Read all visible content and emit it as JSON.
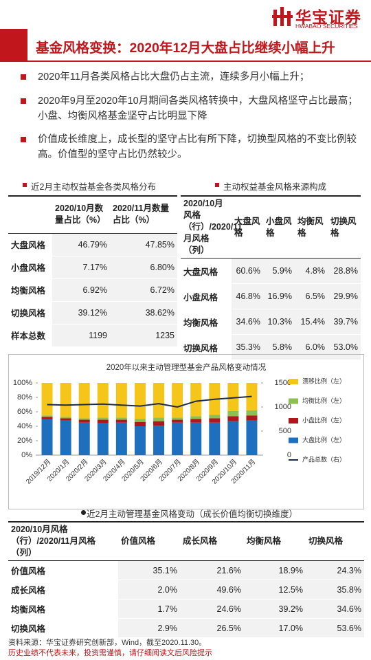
{
  "header": {
    "title": "基金风格变换：2020年12月大盘占比继续小幅上升",
    "logo_name": "华宝证券",
    "logo_sub": "HWABAO SECURITIES"
  },
  "bullets": [
    "2020年11月各类风格占比大盘仍占主流，连续多月小幅上升；",
    "2020年9月至2020年10月期间各类风格转换中，大盘风格坚守占比最高；小盘、均衡风格基金坚守占比明显下降",
    "价值成长维度上，成长型的坚守占比有所下降，切换型风格的不变比例较高。价值型的坚守占比仍然较少。"
  ],
  "table1": {
    "title": "近2月主动权益基金各类风格分布",
    "header": [
      "2020/10月数量占比（%）",
      "2020/11月数量占比（%）"
    ],
    "rows": [
      [
        "大盘风格",
        "46.79%",
        "47.85%"
      ],
      [
        "小盘风格",
        "7.17%",
        "6.80%"
      ],
      [
        "均衡风格",
        "6.92%",
        "6.72%"
      ],
      [
        "切换风格",
        "39.12%",
        "38.62%"
      ],
      [
        "样本总数",
        "1199",
        "1235"
      ]
    ]
  },
  "table2": {
    "title": "主动权益基金风格来源构成",
    "header": [
      "2020/10月风格（行）/2020/11月风格（列）",
      "大盘风格",
      "小盘风格",
      "均衡风格",
      "切换风格"
    ],
    "rows": [
      [
        "大盘风格",
        "60.6%",
        "5.9%",
        "4.8%",
        "28.8%"
      ],
      [
        "小盘风格",
        "46.8%",
        "16.9%",
        "6.5%",
        "29.9%"
      ],
      [
        "均衡风格",
        "34.6%",
        "10.3%",
        "15.4%",
        "39.7%"
      ],
      [
        "切换风格",
        "35.3%",
        "5.8%",
        "6.0%",
        "53.0%"
      ]
    ]
  },
  "chart_data": {
    "type": "bar",
    "stacked": true,
    "title": "2020年以来主动管理型基金产品风格变动情况",
    "categories": [
      "2019/12月",
      "2020/1月",
      "2020/2月",
      "2020/3月",
      "2020/4月",
      "2020/5月",
      "2020/6月",
      "2020/7月",
      "2020/8月",
      "2020/9月",
      "2020/10月",
      "2020/11月"
    ],
    "series": [
      {
        "name": "大盘比例（左）",
        "color": "#1f6fbf",
        "values": [
          50,
          48,
          45,
          44,
          45,
          40,
          41,
          45,
          45,
          45,
          47,
          48
        ]
      },
      {
        "name": "小盘比例（左）",
        "color": "#b0161b",
        "values": [
          3,
          3,
          4,
          5,
          4,
          6,
          6,
          4,
          5,
          6,
          7,
          7
        ]
      },
      {
        "name": "均衡比例（左）",
        "color": "#8cc152",
        "values": [
          2,
          2,
          2,
          3,
          3,
          4,
          5,
          3,
          4,
          5,
          7,
          7
        ]
      },
      {
        "name": "漂移比例（左）",
        "color": "#f5c51a",
        "values": [
          45,
          47,
          49,
          48,
          48,
          50,
          48,
          48,
          46,
          44,
          39,
          38
        ]
      },
      {
        "name": "产品总数（右）",
        "color": "#1c2b4a",
        "axis": "y2",
        "values": [
          1050,
          1040,
          1050,
          1060,
          1040,
          1020,
          1070,
          1000,
          1120,
          1160,
          1190,
          1220
        ]
      }
    ],
    "ylim": [
      0,
      100
    ],
    "yticks": [
      {
        "value": 0,
        "label": "0%"
      },
      {
        "value": 20,
        "label": "20%"
      },
      {
        "value": 40,
        "label": "40%"
      },
      {
        "value": 60,
        "label": "60%"
      },
      {
        "value": 80,
        "label": "80%"
      },
      {
        "value": 100,
        "label": "100%"
      }
    ],
    "y2lim": [
      0,
      1500
    ],
    "y2ticks": [
      0,
      500,
      1000,
      1500
    ],
    "grid": false,
    "legend": "right"
  },
  "table3": {
    "title": "近2月主动管理基金风格变动（成长价值均衡切换维度）",
    "header": [
      "2020/10月风格（行）/2020/11月风格（列）",
      "价值风格",
      "成长风格",
      "均衡风格",
      "切换风格"
    ],
    "rows": [
      [
        "价值风格",
        "35.1%",
        "21.6%",
        "18.9%",
        "24.3%"
      ],
      [
        "成长风格",
        "2.0%",
        "49.6%",
        "12.5%",
        "35.8%"
      ],
      [
        "均衡风格",
        "1.7%",
        "24.6%",
        "39.2%",
        "34.6%"
      ],
      [
        "切换风格",
        "2.9%",
        "26.5%",
        "17.0%",
        "53.6%"
      ]
    ]
  },
  "footer": {
    "source": "资料来源：华宝证券研究创新部，Wind，截至2020.11.30。",
    "risk": "历史业绩不代表未来，投资需谨慎，请仔细阅读文后风险提示"
  }
}
